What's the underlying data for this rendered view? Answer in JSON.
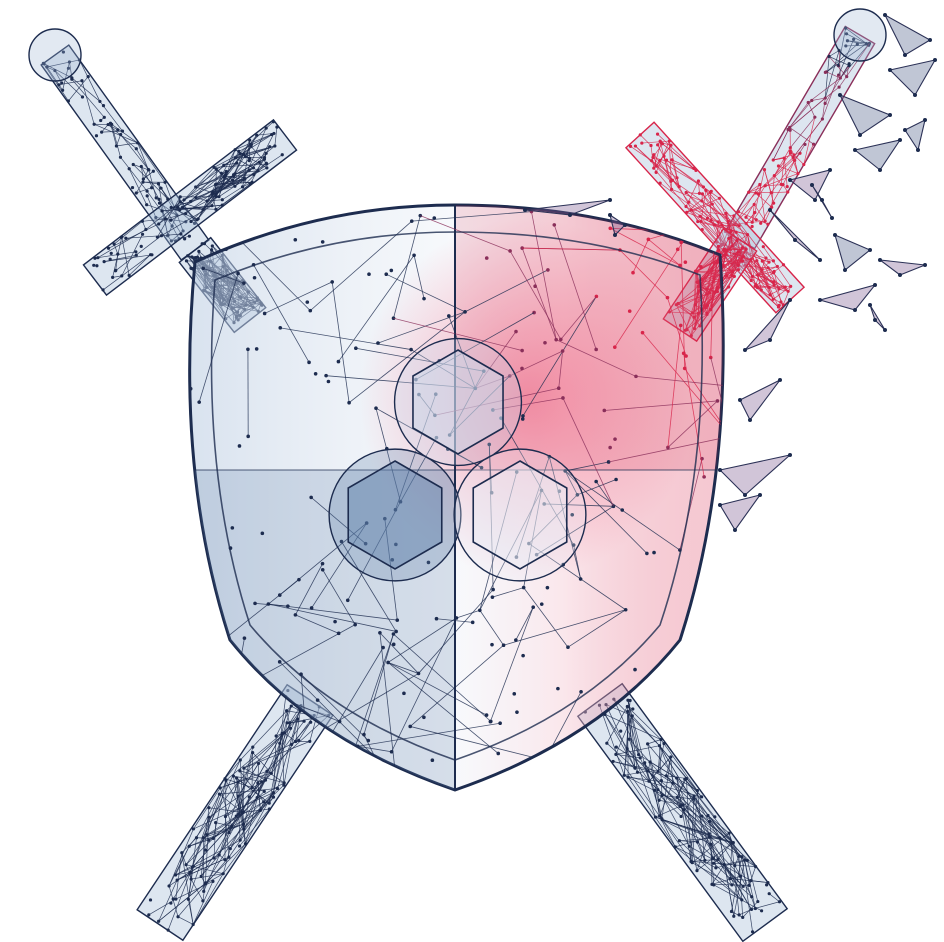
{
  "illustration": {
    "subject": "low-poly-shield-with-crossed-swords",
    "colors": {
      "background": "#ffffff",
      "navy": "#1d2c4f",
      "steel_blue": "#5f80aa",
      "pale_blue": "#c9d8ea",
      "crimson": "#d8254a",
      "pink": "#f2a3b6"
    },
    "icons": [
      "sword-icon",
      "shield-icon",
      "hexagon-cluster-icon",
      "polygon-shard-icon"
    ]
  }
}
